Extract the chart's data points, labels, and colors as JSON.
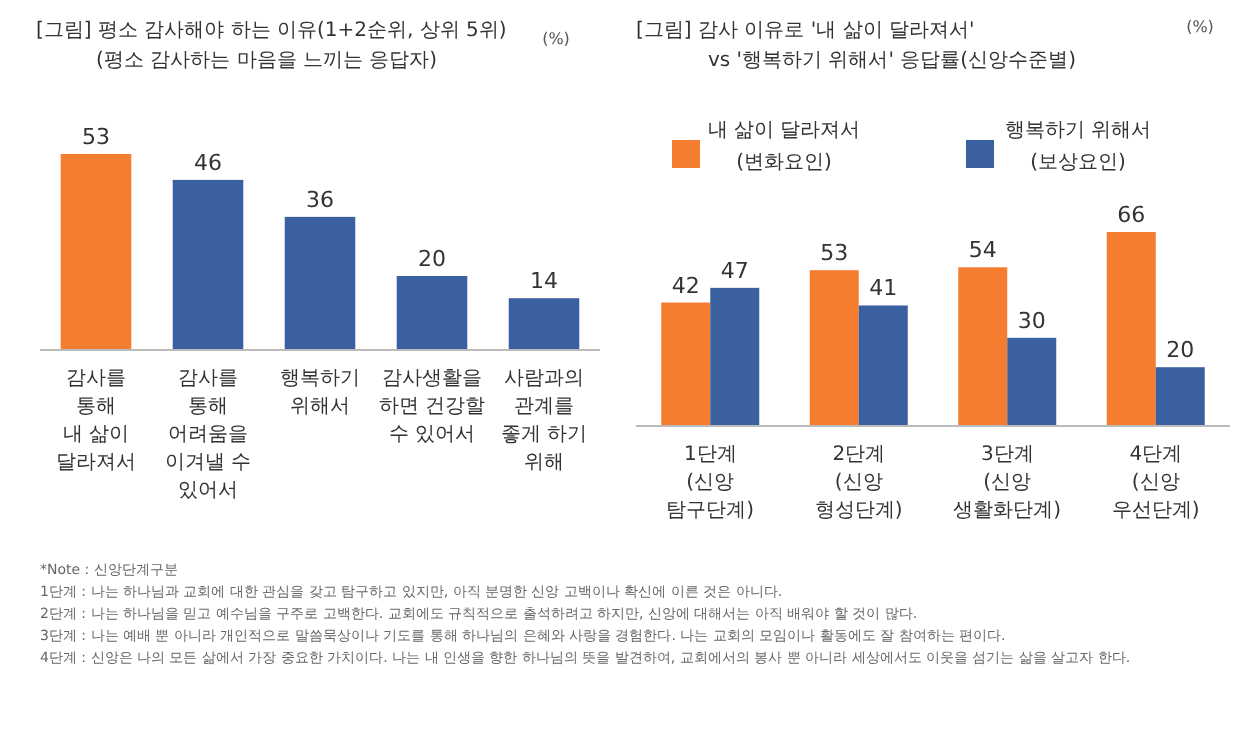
{
  "chart_data": [
    {
      "type": "bar",
      "title": "[그림] 평소 감사해야 하는 이유(1+2순위, 상위 5위)",
      "subtitle": "(평소 감사하는 마음을 느끼는 응답자)",
      "annotations": [
        "(%)"
      ],
      "categories": [
        "감사를\n통해\n내 삶이\n달라져서",
        "감사를\n통해\n어려움을\n이겨낼 수\n있어서",
        "행복하기\n위해서",
        "감사생활을\n하면 건강할\n수 있어서",
        "사람과의\n관계를\n좋게 하기\n위해"
      ],
      "values": [
        53,
        46,
        36,
        20,
        14
      ],
      "colors": [
        "#f47d30",
        "#3a60a0",
        "#3a60a0",
        "#3a60a0",
        "#3a60a0"
      ],
      "data_labels": true
    },
    {
      "type": "bar",
      "title": "[그림] 감사 이유로 '내 삶이 달라져서'",
      "subtitle": "vs '행복하기 위해서' 응답률(신앙수준별)",
      "legend": "top",
      "categories": [
        "1단계\n(신앙\n탐구단계)",
        "2단계\n(신앙\n형성단계)",
        "3단계\n(신앙\n생활화단계)",
        "4단계\n(신앙\n우선단계)"
      ],
      "series": [
        {
          "name": "내 삶이 달라져서\n(변화요인)",
          "color": "#f47d30",
          "values": [
            42,
            53,
            54,
            66
          ]
        },
        {
          "name": "행복하기 위해서\n(보상요인)",
          "color": "#3a60a0",
          "values": [
            47,
            41,
            30,
            20
          ]
        }
      ],
      "data_labels": true,
      "annotations": [
        "(%)",
        "*Note : 신앙단계구분",
        "1단계 : 나는 하나님과 교회에 대한 관심을 갖고 탐구하고 있지만, 아직 분명한 신앙 고백이나 확신에 이른 것은 아니다.",
        "2단계 : 나는 하나님을 믿고 예수님을 구주로 고백한다. 교회에도 규칙적으로 출석하려고 하지만, 신앙에 대해서는 아직 배워야 할 것이 많다.",
        "3단계 : 나는 예배 뿐 아니라 개인적으로 말씀묵상이나 기도를 통해 하나님의 은혜와 사랑을 경험한다. 나는 교회의 모임이나 활동에도 잘 참여하는 편이다.",
        "4단계 : 신앙은 나의 모든 삶에서 가장 중요한 가치이다. 나는 내 인생을 향한 하나님의 뜻을 발견하여, 교회에서의 봉사 뿐 아니라 세상에서도 이웃을 섬기는 삶을 살고자 한다."
      ]
    }
  ]
}
